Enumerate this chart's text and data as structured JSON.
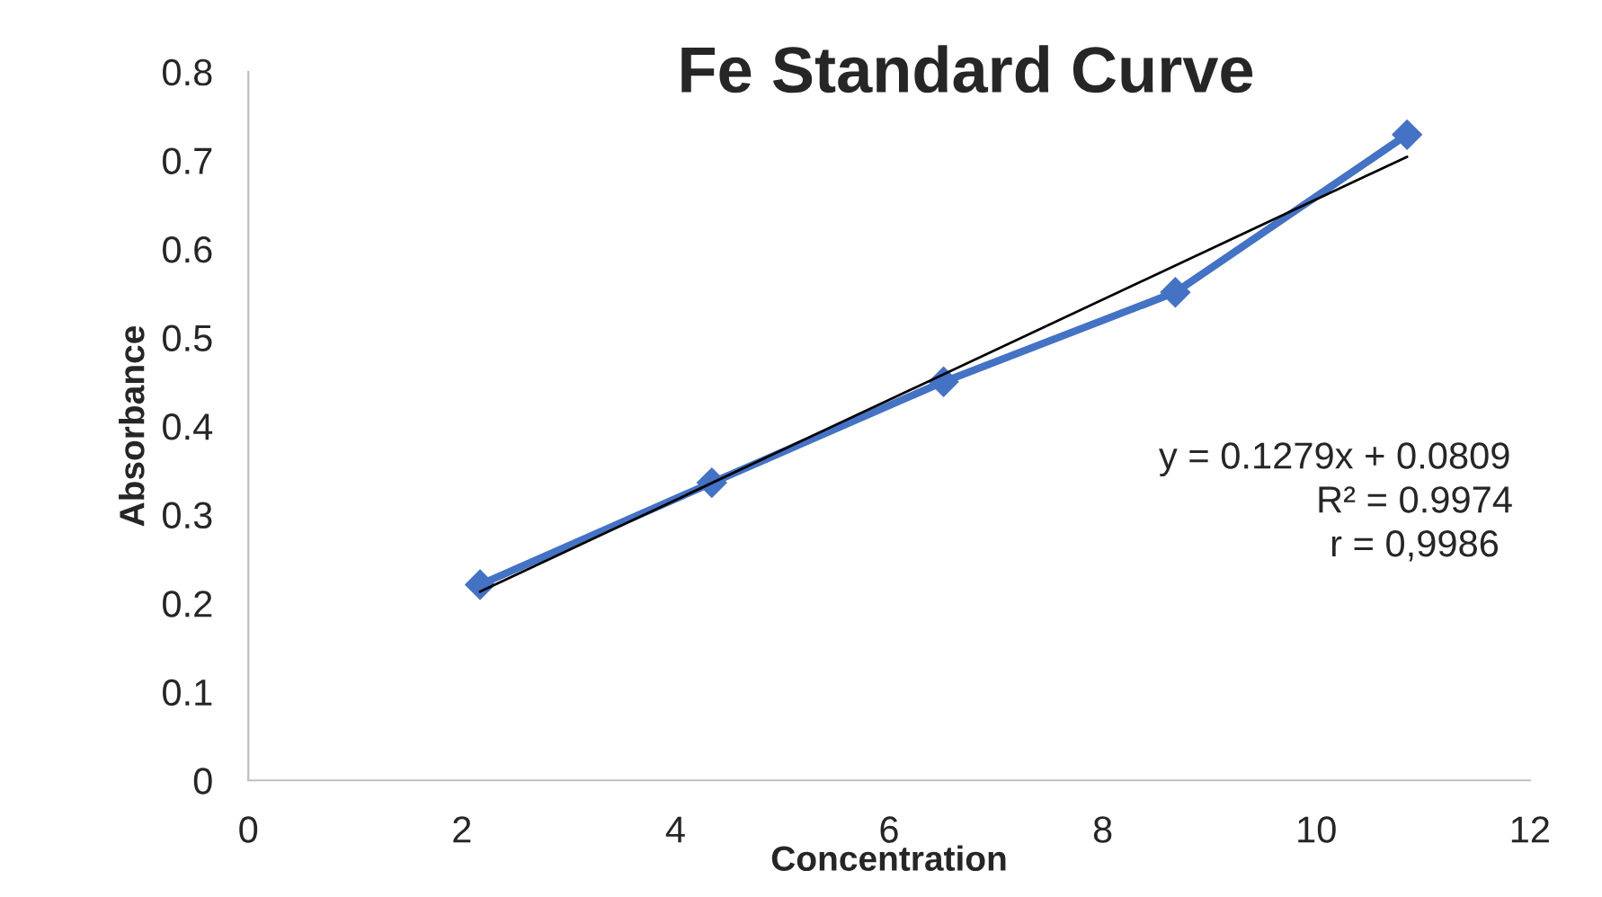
{
  "chart_data": {
    "type": "line",
    "title": "Fe Standard Curve",
    "xlabel": "Concentration",
    "ylabel": "Absorbance",
    "x": [
      2.17,
      4.34,
      6.51,
      8.68,
      10.85
    ],
    "series": [
      {
        "color": "#4472c4",
        "marker": "diamond",
        "values": [
          0.221,
          0.336,
          0.45,
          0.551,
          0.729
        ]
      },
      {
        "type": "line",
        "color": "#000000",
        "marker": "none",
        "x": [
          2.17,
          10.85
        ],
        "values": [
          0.213,
          0.704
        ]
      }
    ],
    "annotations": [
      "y = 0.1279x + 0.0809",
      "R² = 0.9974",
      "r = 0,9986"
    ],
    "xlim": [
      0,
      12
    ],
    "xticks": [
      0,
      2,
      4,
      6,
      8,
      10,
      12
    ],
    "ylim": [
      0,
      0.8
    ],
    "yticks": [
      0,
      0.1,
      0.2,
      0.3,
      0.4,
      0.5,
      0.6,
      0.7,
      0.8
    ],
    "grid": false,
    "legend": false
  }
}
